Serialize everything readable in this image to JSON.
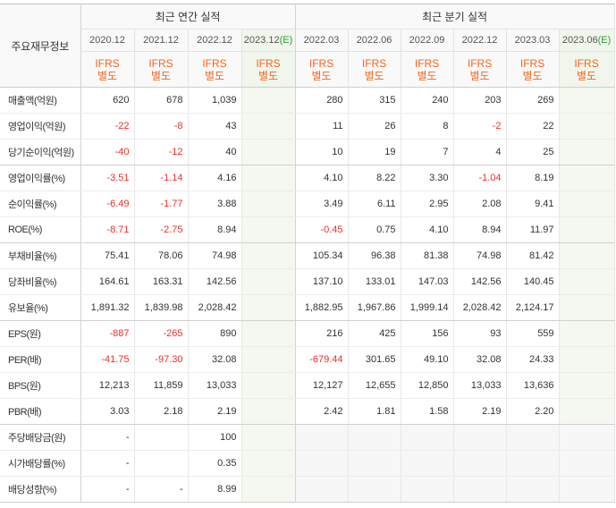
{
  "table": {
    "corner_label": "주요재무정보",
    "annual_group": "최근 연간 실적",
    "quarterly_group": "최근 분기 실적",
    "annual_periods": [
      {
        "date": "2020.12",
        "estimate": "",
        "basis": [
          "IFRS",
          "별도"
        ]
      },
      {
        "date": "2021.12",
        "estimate": "",
        "basis": [
          "IFRS",
          "별도"
        ]
      },
      {
        "date": "2022.12",
        "estimate": "",
        "basis": [
          "IFRS",
          "별도"
        ]
      },
      {
        "date": "2023.12",
        "estimate": "(E)",
        "basis": [
          "IFRS",
          "별도"
        ]
      }
    ],
    "quarterly_periods": [
      {
        "date": "2022.03",
        "estimate": "",
        "basis": [
          "IFRS",
          "별도"
        ]
      },
      {
        "date": "2022.06",
        "estimate": "",
        "basis": [
          "IFRS",
          "별도"
        ]
      },
      {
        "date": "2022.09",
        "estimate": "",
        "basis": [
          "IFRS",
          "별도"
        ]
      },
      {
        "date": "2022.12",
        "estimate": "",
        "basis": [
          "IFRS",
          "별도"
        ]
      },
      {
        "date": "2023.03",
        "estimate": "",
        "basis": [
          "IFRS",
          "별도"
        ]
      },
      {
        "date": "2023.06",
        "estimate": "(E)",
        "basis": [
          "IFRS",
          "별도"
        ]
      }
    ]
  },
  "row_groups": [
    [
      {
        "label": "매출액(억원)",
        "annual": [
          "620",
          "678",
          "1,039",
          ""
        ],
        "quarterly": [
          "280",
          "315",
          "240",
          "203",
          "269",
          ""
        ]
      },
      {
        "label": "영업이익(억원)",
        "annual": [
          "-22",
          "-8",
          "43",
          ""
        ],
        "quarterly": [
          "11",
          "26",
          "8",
          "-2",
          "22",
          ""
        ]
      },
      {
        "label": "당기순이익(억원)",
        "annual": [
          "-40",
          "-12",
          "40",
          ""
        ],
        "quarterly": [
          "10",
          "19",
          "7",
          "4",
          "25",
          ""
        ]
      }
    ],
    [
      {
        "label": "영업이익률(%)",
        "annual": [
          "-3.51",
          "-1.14",
          "4.16",
          ""
        ],
        "quarterly": [
          "4.10",
          "8.22",
          "3.30",
          "-1.04",
          "8.19",
          ""
        ]
      },
      {
        "label": "순이익률(%)",
        "annual": [
          "-6.49",
          "-1.77",
          "3.88",
          ""
        ],
        "quarterly": [
          "3.49",
          "6.11",
          "2.95",
          "2.08",
          "9.41",
          ""
        ]
      },
      {
        "label": "ROE(%)",
        "annual": [
          "-8.71",
          "-2.75",
          "8.94",
          ""
        ],
        "quarterly": [
          "-0.45",
          "0.75",
          "4.10",
          "8.94",
          "11.97",
          ""
        ]
      }
    ],
    [
      {
        "label": "부채비율(%)",
        "annual": [
          "75.41",
          "78.06",
          "74.98",
          ""
        ],
        "quarterly": [
          "105.34",
          "96.38",
          "81.38",
          "74.98",
          "81.42",
          ""
        ]
      },
      {
        "label": "당좌비율(%)",
        "annual": [
          "164.61",
          "163.31",
          "142.56",
          ""
        ],
        "quarterly": [
          "137.10",
          "133.01",
          "147.03",
          "142.56",
          "140.45",
          ""
        ]
      },
      {
        "label": "유보율(%)",
        "annual": [
          "1,891.32",
          "1,839.98",
          "2,028.42",
          ""
        ],
        "quarterly": [
          "1,882.95",
          "1,967.86",
          "1,999.14",
          "2,028.42",
          "2,124.17",
          ""
        ]
      }
    ],
    [
      {
        "label": "EPS(원)",
        "annual": [
          "-887",
          "-265",
          "890",
          ""
        ],
        "quarterly": [
          "216",
          "425",
          "156",
          "93",
          "559",
          ""
        ]
      },
      {
        "label": "PER(배)",
        "annual": [
          "-41.75",
          "-97.30",
          "32.08",
          ""
        ],
        "quarterly": [
          "-679.44",
          "301.65",
          "49.10",
          "32.08",
          "24.33",
          ""
        ]
      },
      {
        "label": "BPS(원)",
        "annual": [
          "12,213",
          "11,859",
          "13,033",
          ""
        ],
        "quarterly": [
          "12,127",
          "12,655",
          "12,850",
          "13,033",
          "13,636",
          ""
        ]
      },
      {
        "label": "PBR(배)",
        "annual": [
          "3.03",
          "2.18",
          "2.19",
          ""
        ],
        "quarterly": [
          "2.42",
          "1.81",
          "1.58",
          "2.19",
          "2.20",
          ""
        ]
      }
    ],
    [
      {
        "label": "주당배당금(원)",
        "annual": [
          "-",
          "",
          "100",
          ""
        ],
        "quarterly": []
      },
      {
        "label": "시가배당률(%)",
        "annual": [
          "-",
          "",
          "0.35",
          ""
        ],
        "quarterly": []
      },
      {
        "label": "배당성향(%)",
        "annual": [
          "-",
          "-",
          "8.99",
          ""
        ],
        "quarterly": []
      }
    ]
  ],
  "colors": {
    "basis_text": "#f0661e",
    "negative_value": "#e8312a",
    "estimate_mark": "#2e9d3a",
    "estimate_column_bg": "#f4f8f0"
  }
}
